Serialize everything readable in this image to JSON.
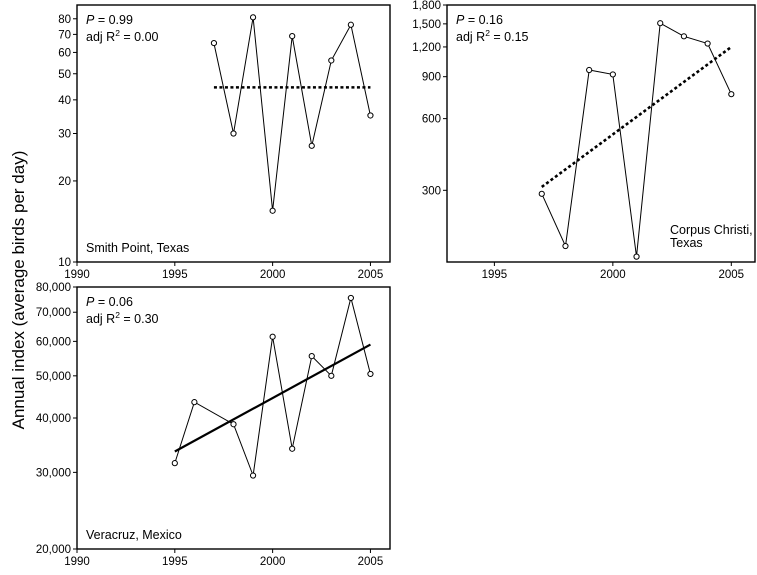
{
  "ylabel": "Annual index (average birds per day)",
  "chart_data": [
    {
      "type": "line",
      "site": "Smith Point, Texas",
      "stat_p_value": "0.99",
      "stat_r2_value": "0.00",
      "stat_adj_label": "adj R",
      "stat_sup": "2",
      "stat_eq": " = ",
      "xlim": [
        1990,
        2006
      ],
      "ylim": [
        10,
        90
      ],
      "yscale": "log",
      "x_ticks": [
        1990,
        1995,
        2000,
        2005
      ],
      "x_tick_labels": [
        "1990",
        "1995",
        "2000",
        "2005"
      ],
      "y_ticks": [
        10,
        20,
        30,
        40,
        50,
        60,
        70,
        80
      ],
      "y_tick_labels": [
        "10",
        "20",
        "30",
        "40",
        "50",
        "60",
        "70",
        "80"
      ],
      "series": [
        {
          "x": [
            1997,
            1998,
            1999,
            2000,
            2001,
            2002,
            2003,
            2004,
            2005
          ],
          "y": [
            65,
            30,
            81,
            15.5,
            69,
            27,
            56,
            76,
            35
          ]
        }
      ],
      "trend": {
        "style": "dotted",
        "x": [
          1997,
          2005
        ],
        "y": [
          44.5,
          44.5
        ]
      }
    },
    {
      "type": "line",
      "site": "Corpus Christi, Texas",
      "site_lines": [
        "Corpus Christi,",
        "Texas"
      ],
      "stat_p_value": "0.16",
      "stat_r2_value": "0.15",
      "stat_adj_label": "adj R",
      "stat_sup": "2",
      "stat_eq": " = ",
      "xlim": [
        1993,
        2006
      ],
      "ylim": [
        150,
        1800
      ],
      "yscale": "log",
      "x_ticks": [
        1995,
        2000,
        2005
      ],
      "x_tick_labels": [
        "1995",
        "2000",
        "2005"
      ],
      "y_ticks": [
        300,
        600,
        900,
        1200,
        1500,
        1800
      ],
      "y_tick_labels": [
        "300",
        "600",
        "900",
        "1,200",
        "1,500",
        "1,800"
      ],
      "series": [
        {
          "x": [
            1997,
            1998,
            1999,
            2000,
            2001,
            2002,
            2003,
            2004,
            2005
          ],
          "y": [
            290,
            175,
            960,
            920,
            158,
            1510,
            1330,
            1240,
            760
          ]
        }
      ],
      "trend": {
        "style": "dotted",
        "x": [
          1997,
          2005
        ],
        "y": [
          310,
          1200
        ]
      }
    },
    {
      "type": "line",
      "site": "Veracruz, Mexico",
      "stat_p_value": "0.06",
      "stat_r2_value": "0.30",
      "stat_adj_label": "adj R",
      "stat_sup": "2",
      "stat_eq": " = ",
      "xlim": [
        1990,
        2006
      ],
      "ylim": [
        20000,
        80000
      ],
      "yscale": "log",
      "x_ticks": [
        1990,
        1995,
        2000,
        2005
      ],
      "x_tick_labels": [
        "1990",
        "1995",
        "2000",
        "2005"
      ],
      "y_ticks": [
        20000,
        30000,
        40000,
        50000,
        60000,
        70000,
        80000
      ],
      "y_tick_labels": [
        "20,000",
        "30,000",
        "40,000",
        "50,000",
        "60,000",
        "70,000",
        "80,000"
      ],
      "series": [
        {
          "x": [
            1995,
            1996,
            1998,
            1999,
            2000,
            2001,
            2002,
            2003,
            2004,
            2005
          ],
          "y": [
            31500,
            43500,
            38700,
            29500,
            61500,
            34000,
            55500,
            50000,
            75500,
            50500
          ]
        }
      ],
      "trend": {
        "style": "solid",
        "x": [
          1995,
          2005
        ],
        "y": [
          33500,
          59000
        ]
      }
    }
  ]
}
